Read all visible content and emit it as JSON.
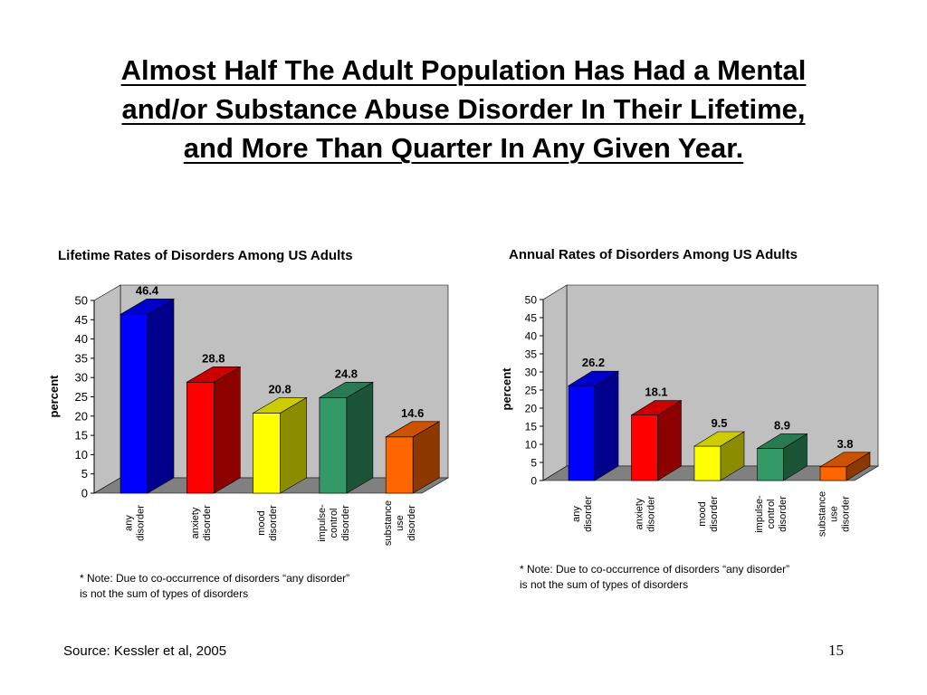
{
  "slide": {
    "title_lines": [
      "Almost Half The Adult Population Has Had a Mental",
      "and/or Substance Abuse Disorder In Their Lifetime,",
      "and More Than Quarter In Any Given Year."
    ],
    "source": "Source: Kessler et al, 2005",
    "page_number": "15"
  },
  "notes": {
    "left": [
      "* Note: Due to co-occurrence of disorders “any disorder”",
      "is not the sum of types of disorders"
    ],
    "right": [
      "* Note: Due to co-occurrence of disorders “any disorder”",
      "is not the sum of types of disorders"
    ]
  },
  "colors": {
    "wall": "#c0c0c0",
    "floor": "#808080",
    "any": "#0000ff",
    "anxiety": "#ff0000",
    "mood": "#ffff00",
    "impulse": "#339966",
    "substance": "#ff6600"
  },
  "chart_data": [
    {
      "type": "bar",
      "title": "Lifetime Rates of Disorders Among US Adults",
      "xlabel": "",
      "ylabel": "percent",
      "ylim": [
        0,
        50
      ],
      "yticks": [
        0,
        5,
        10,
        15,
        20,
        25,
        30,
        35,
        40,
        45,
        50
      ],
      "grid": false,
      "three_d": true,
      "categories": [
        [
          "any",
          "disorder"
        ],
        [
          "anxiety",
          "disorder"
        ],
        [
          "mood",
          "disorder"
        ],
        [
          "impulse-",
          "control",
          "disorder"
        ],
        [
          "substance",
          "use",
          "disorder"
        ]
      ],
      "values": [
        46.4,
        28.8,
        20.8,
        24.8,
        14.6
      ],
      "data_labels": [
        "46.4",
        "28.8",
        "20.8",
        "24.8",
        "14.6"
      ],
      "bar_colors": [
        "#0000ff",
        "#ff0000",
        "#ffff00",
        "#339966",
        "#ff6600"
      ]
    },
    {
      "type": "bar",
      "title": "Annual Rates of Disorders Among US Adults",
      "xlabel": "",
      "ylabel": "percent",
      "ylim": [
        0,
        50
      ],
      "yticks": [
        0,
        5,
        10,
        15,
        20,
        25,
        30,
        35,
        40,
        45,
        50
      ],
      "grid": false,
      "three_d": true,
      "categories": [
        [
          "any",
          "disorder"
        ],
        [
          "anxiety",
          "disorder"
        ],
        [
          "mood",
          "disorder"
        ],
        [
          "impulse-",
          "control",
          "disorder"
        ],
        [
          "substance",
          "use",
          "disorder"
        ]
      ],
      "values": [
        26.2,
        18.1,
        9.5,
        8.9,
        3.8
      ],
      "data_labels": [
        "26.2",
        "18.1",
        "9.5",
        "8.9",
        "3.8"
      ],
      "bar_colors": [
        "#0000ff",
        "#ff0000",
        "#ffff00",
        "#339966",
        "#ff6600"
      ]
    }
  ]
}
